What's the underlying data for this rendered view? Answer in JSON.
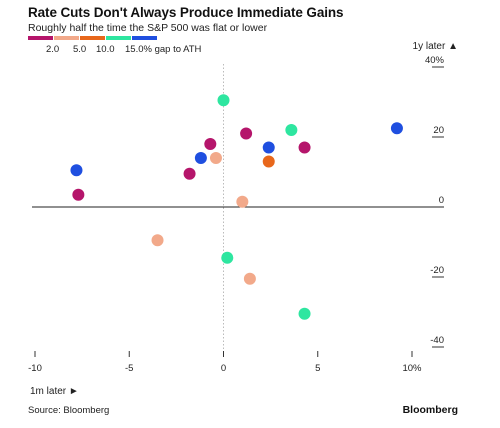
{
  "header": {
    "title": "Rate Cuts Don't Always Produce Immediate Gains",
    "subtitle": "Roughly half the time the S&P 500 was flat or lower"
  },
  "legend": {
    "labels": [
      "2.0",
      "5.0",
      "10.0",
      "15.0% gap to ATH"
    ],
    "colors": [
      "#b5156b",
      "#f2a98a",
      "#e8671b",
      "#2ee6a0",
      "#1f4fe0"
    ]
  },
  "footer": {
    "source": "Source: Bloomberg",
    "brand": "Bloomberg"
  },
  "chart_data": {
    "type": "scatter",
    "title": "Rate Cuts Don't Always Produce Immediate Gains",
    "subtitle": "Roughly half the time the S&P 500 was flat or lower",
    "xlabel": "1m later ►",
    "ylabel": "1y later ▲",
    "xlim": [
      -10,
      10
    ],
    "ylim": [
      -40,
      40
    ],
    "x_ticks": [
      -10,
      -5,
      0,
      5,
      10
    ],
    "x_tick_labels": [
      "-10",
      "-5",
      "0",
      "5",
      "10%"
    ],
    "y_ticks": [
      40,
      20,
      0,
      -20,
      -40
    ],
    "y_tick_labels": [
      "40%",
      "20",
      "0",
      "-20",
      "-40"
    ],
    "grid": false,
    "legend_position": "top-left",
    "points": [
      {
        "x": -7.8,
        "y": 10.5,
        "color": "#1f4fe0"
      },
      {
        "x": -7.7,
        "y": 3.5,
        "color": "#b5156b"
      },
      {
        "x": -3.5,
        "y": -9.5,
        "color": "#f2a98a"
      },
      {
        "x": -1.8,
        "y": 9.5,
        "color": "#b5156b"
      },
      {
        "x": -1.2,
        "y": 14,
        "color": "#1f4fe0"
      },
      {
        "x": -0.7,
        "y": 18,
        "color": "#b5156b"
      },
      {
        "x": -0.4,
        "y": 14,
        "color": "#f2a98a"
      },
      {
        "x": 0.0,
        "y": 30.5,
        "color": "#2ee6a0"
      },
      {
        "x": 0.2,
        "y": -14.5,
        "color": "#2ee6a0"
      },
      {
        "x": 1.0,
        "y": 1.5,
        "color": "#f2a98a"
      },
      {
        "x": 1.2,
        "y": 21,
        "color": "#b5156b"
      },
      {
        "x": 1.4,
        "y": -20.5,
        "color": "#f2a98a"
      },
      {
        "x": 2.4,
        "y": 17,
        "color": "#1f4fe0"
      },
      {
        "x": 2.4,
        "y": 13,
        "color": "#e8671b"
      },
      {
        "x": 3.6,
        "y": 22,
        "color": "#2ee6a0"
      },
      {
        "x": 4.3,
        "y": 17,
        "color": "#b5156b"
      },
      {
        "x": 4.3,
        "y": -30.5,
        "color": "#2ee6a0"
      },
      {
        "x": 9.2,
        "y": 22.5,
        "color": "#1f4fe0"
      }
    ]
  }
}
